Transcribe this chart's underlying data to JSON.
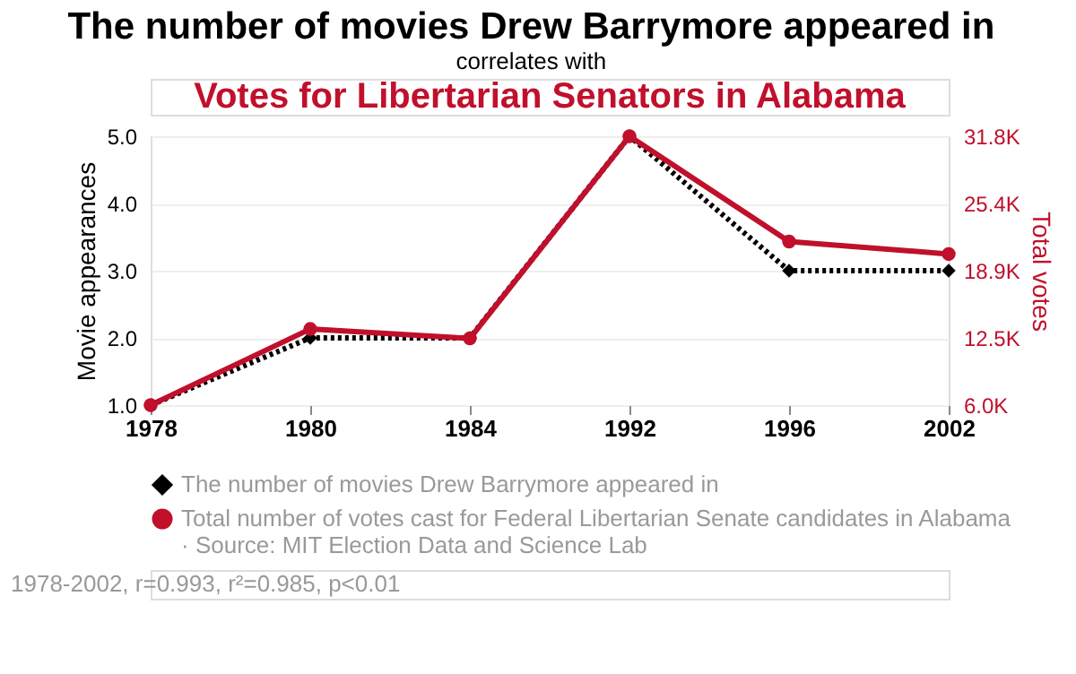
{
  "chart_data": {
    "type": "line",
    "title": "The number of movies Drew Barrymore appeared in",
    "subtitle": [
      "correlates with",
      "Votes for Libertarian Senators in Alabama"
    ],
    "categories": [
      "1978",
      "1980",
      "1984",
      "1992",
      "1996",
      "2002"
    ],
    "ylabel": "Movie appearances",
    "y2label": "Total votes",
    "series": [
      {
        "name": "The number of movies Drew Barrymore appeared in",
        "color": "#000000",
        "values": [
          1,
          2,
          2,
          5,
          3,
          3
        ],
        "marker": "diamond",
        "line_style": "dotted"
      },
      {
        "name": "Total number of votes cast for Federal Libertarian Senate candidates in Alabama · Source: MIT Election Data and Science Lab",
        "color": "#c0102c",
        "values": [
          6000,
          13300,
          12400,
          31800,
          21700,
          20500
        ],
        "axis": "y2",
        "marker": "circle",
        "line_style": "solid"
      }
    ],
    "ylim": [
      1,
      5
    ],
    "yticks": [
      {
        "value": 1,
        "label": "1.0"
      },
      {
        "value": 2,
        "label": "2.0"
      },
      {
        "value": 3,
        "label": "3.0"
      },
      {
        "value": 4,
        "label": "4.0"
      },
      {
        "value": 5,
        "label": "5.0"
      }
    ],
    "y2lim": [
      6000,
      31800
    ],
    "y2ticks": [
      {
        "value": 6000,
        "label": "6.0K"
      },
      {
        "value": 12450,
        "label": "12.5K"
      },
      {
        "value": 18900,
        "label": "18.9K"
      },
      {
        "value": 25350,
        "label": "25.4K"
      },
      {
        "value": 31800,
        "label": "31.8K"
      }
    ],
    "grid": "y",
    "legend": "bottom",
    "annotations": [
      "1978-2002, r=0.993, r²=0.985, p<0.01"
    ]
  }
}
